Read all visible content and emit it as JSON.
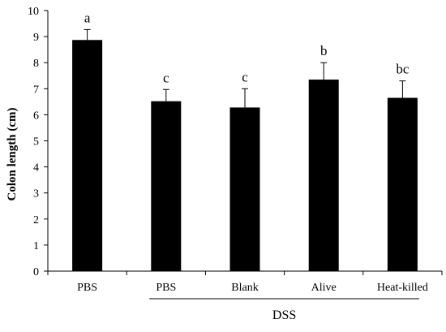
{
  "chart_data": {
    "type": "bar",
    "title": "",
    "xlabel": "",
    "ylabel": "Colon length (cm)",
    "ylim": [
      0,
      10
    ],
    "yticks": [
      0,
      1,
      2,
      3,
      4,
      5,
      6,
      7,
      8,
      9,
      10
    ],
    "grid": false,
    "legend": "none",
    "categories": [
      "PBS",
      "PBS",
      "Blank",
      "Alive",
      "Heat-killed"
    ],
    "values": [
      8.87,
      6.52,
      6.28,
      7.35,
      6.65
    ],
    "error": [
      0.4,
      0.45,
      0.72,
      0.65,
      0.65
    ],
    "significance": [
      "a",
      "c",
      "c",
      "b",
      "bc"
    ],
    "group_label": {
      "text": "DSS",
      "first_category_index": 1,
      "last_category_index": 4
    },
    "colors": {
      "bar": "#000000",
      "axis": "#000000"
    }
  }
}
